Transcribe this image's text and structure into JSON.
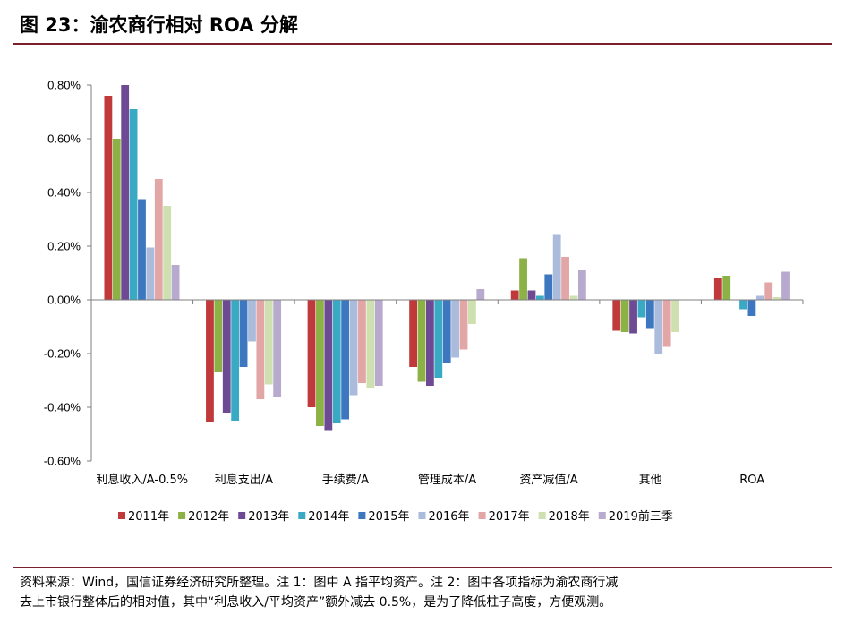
{
  "header": {
    "title": "图 23：渝农商行相对 ROA 分解"
  },
  "footer": {
    "line1": "资料来源：Wind，国信证券经济研究所整理。注 1：图中 A 指平均资产。注 2：图中各项指标为渝农商行减",
    "line2": "去上市银行整体后的相对值，其中“利息收入/平均资产”额外减去 0.5%，是为了降低柱子高度，方便观测。"
  },
  "chart_data": {
    "type": "bar",
    "categories": [
      "利息收入/A-0.5%",
      "利息支出/A",
      "手续费/A",
      "管理成本/A",
      "资产减值/A",
      "其他",
      "ROA"
    ],
    "yticks": [
      "0.80%",
      "0.60%",
      "0.40%",
      "0.20%",
      "0.00%",
      "-0.20%",
      "-0.40%",
      "-0.60%"
    ],
    "ylim": [
      -0.6,
      0.8
    ],
    "series": [
      {
        "name": "2011年",
        "color": "#c0393b",
        "values": [
          0.76,
          -0.455,
          -0.4,
          -0.25,
          0.035,
          -0.115,
          0.08
        ]
      },
      {
        "name": "2012年",
        "color": "#8cb245",
        "values": [
          0.6,
          -0.27,
          -0.47,
          -0.305,
          0.155,
          -0.12,
          0.09
        ]
      },
      {
        "name": "2013年",
        "color": "#6f4a94",
        "values": [
          0.8,
          -0.42,
          -0.485,
          -0.32,
          0.035,
          -0.125,
          0.0
        ]
      },
      {
        "name": "2014年",
        "color": "#3aaac4",
        "values": [
          0.71,
          -0.45,
          -0.46,
          -0.29,
          0.015,
          -0.065,
          -0.035
        ]
      },
      {
        "name": "2015年",
        "color": "#3d77c0",
        "values": [
          0.375,
          -0.25,
          -0.445,
          -0.235,
          0.095,
          -0.105,
          -0.06
        ]
      },
      {
        "name": "2016年",
        "color": "#aabbdb",
        "values": [
          0.195,
          -0.155,
          -0.355,
          -0.215,
          0.245,
          -0.2,
          0.015
        ]
      },
      {
        "name": "2017年",
        "color": "#e3a6a6",
        "values": [
          0.45,
          -0.37,
          -0.31,
          -0.185,
          0.16,
          -0.175,
          0.065
        ]
      },
      {
        "name": "2018年",
        "color": "#cfe0b0",
        "values": [
          0.35,
          -0.315,
          -0.33,
          -0.09,
          0.015,
          -0.12,
          0.01
        ]
      },
      {
        "name": "2019前三季",
        "color": "#b8a9cf",
        "values": [
          0.13,
          -0.36,
          -0.32,
          0.04,
          0.11,
          0.0,
          0.105
        ]
      }
    ],
    "grid": false,
    "legend": "bottom"
  }
}
